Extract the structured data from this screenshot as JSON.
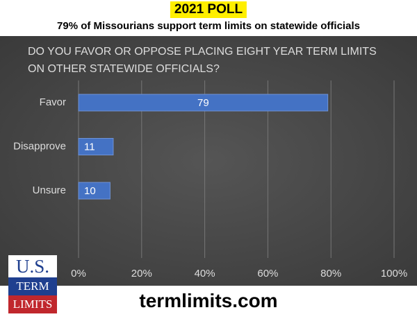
{
  "header": {
    "badge": "2021 POLL",
    "subtitle": "79% of Missourians support term limits on statewide officials"
  },
  "chart_data": {
    "type": "bar",
    "orientation": "horizontal",
    "title": "DO YOU FAVOR OR OPPOSE PLACING EIGHT YEAR TERM LIMITS ON OTHER STATEWIDE OFFICIALS?",
    "categories": [
      "Favor",
      "Disapprove",
      "Unsure"
    ],
    "values": [
      79,
      11,
      10
    ],
    "color": "#4472c4",
    "xlim": [
      0,
      100
    ],
    "xticks": [
      {
        "value": 0,
        "label": "0%"
      },
      {
        "value": 20,
        "label": "20%"
      },
      {
        "value": 40,
        "label": "40%"
      },
      {
        "value": 60,
        "label": "60%"
      },
      {
        "value": 80,
        "label": "80%"
      },
      {
        "value": 100,
        "label": "100%"
      }
    ],
    "grid": true
  },
  "logo": {
    "line1": "U.S.",
    "line2": "TERM",
    "line3": "LIMITS"
  },
  "footer": {
    "url": "termlimits.com"
  }
}
